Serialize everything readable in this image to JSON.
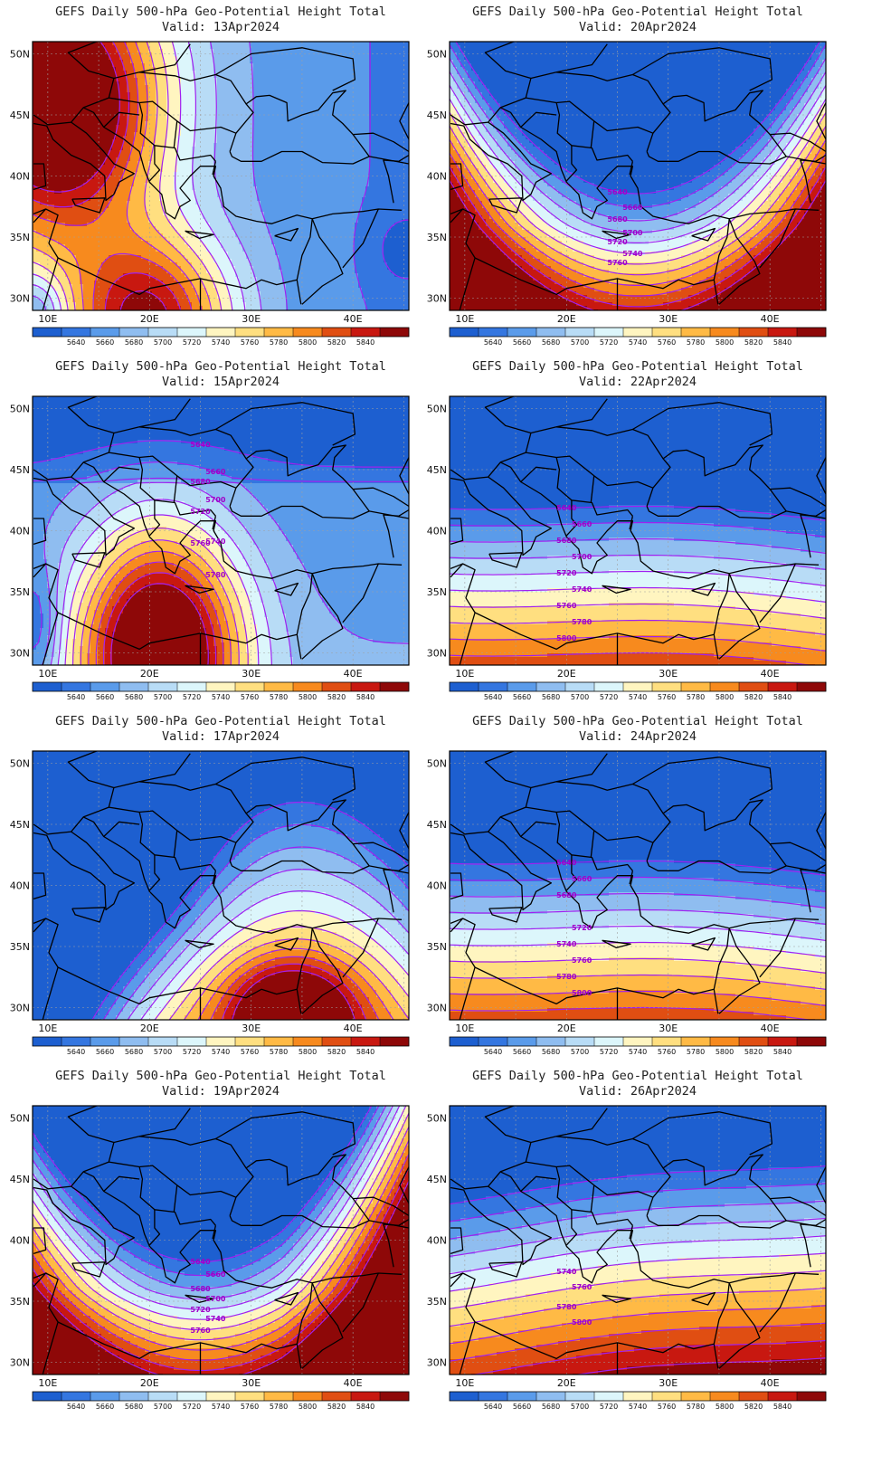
{
  "colors": {
    "frame": "#000000",
    "contour": "#a020f0",
    "coast": "#000000",
    "grid": "#a0a0a0",
    "levels": [
      "#1d5fd0",
      "#3476e0",
      "#5a9bea",
      "#8fbdf0",
      "#b8dcf6",
      "#dcf6fb",
      "#fff5c0",
      "#ffdf80",
      "#ffba45",
      "#f78a1e",
      "#e04e12",
      "#c81810",
      "#8e0808"
    ]
  },
  "colorbar": {
    "labels": [
      "5640",
      "5660",
      "5680",
      "5700",
      "5720",
      "5740",
      "5760",
      "5780",
      "5800",
      "5820",
      "5840"
    ]
  },
  "axes": {
    "lat_labels": [
      "50N",
      "45N",
      "40N",
      "35N",
      "30N"
    ],
    "lon_labels": [
      "10E",
      "20E",
      "30E",
      "40E"
    ]
  },
  "panels": [
    {
      "title": "GEFS Daily 500-hPa Geo-Potential Height Total",
      "valid": "Valid: 13Apr2024",
      "kind": "ridge_west",
      "contour_labels": []
    },
    {
      "title": "GEFS Daily 500-hPa Geo-Potential Height Total",
      "valid": "Valid: 20Apr2024",
      "kind": "trough_north",
      "contour_labels": [
        "5640",
        "5660",
        "5680",
        "5700",
        "5720",
        "5740",
        "5760"
      ]
    },
    {
      "title": "GEFS Daily 500-hPa Geo-Potential Height Total",
      "valid": "Valid: 15Apr2024",
      "kind": "ridge_center",
      "contour_labels": [
        "5640",
        "5660",
        "5680",
        "5700",
        "5720",
        "5740",
        "5760",
        "5780"
      ]
    },
    {
      "title": "GEFS Daily 500-hPa Geo-Potential Height Total",
      "valid": "Valid: 22Apr2024",
      "kind": "zonal",
      "contour_labels": [
        "5640",
        "5660",
        "5680",
        "5700",
        "5720",
        "5740",
        "5760",
        "5780",
        "5800"
      ]
    },
    {
      "title": "GEFS Daily 500-hPa Geo-Potential Height Total",
      "valid": "Valid: 17Apr2024",
      "kind": "trough_diag",
      "contour_labels": []
    },
    {
      "title": "GEFS Daily 500-hPa Geo-Potential Height Total",
      "valid": "Valid: 24Apr2024",
      "kind": "zonal",
      "contour_labels": [
        "5640",
        "5660",
        "5680",
        "5720",
        "5740",
        "5760",
        "5780",
        "5800"
      ]
    },
    {
      "title": "GEFS Daily 500-hPa Geo-Potential Height Total",
      "valid": "Valid: 19Apr2024",
      "kind": "trough_north2",
      "contour_labels": [
        "5640",
        "5660",
        "5680",
        "5700",
        "5720",
        "5740",
        "5760"
      ]
    },
    {
      "title": "GEFS Daily 500-hPa Geo-Potential Height Total",
      "valid": "Valid: 26Apr2024",
      "kind": "zonal2",
      "contour_labels": [
        "5740",
        "5760",
        "5780",
        "5800"
      ]
    }
  ]
}
